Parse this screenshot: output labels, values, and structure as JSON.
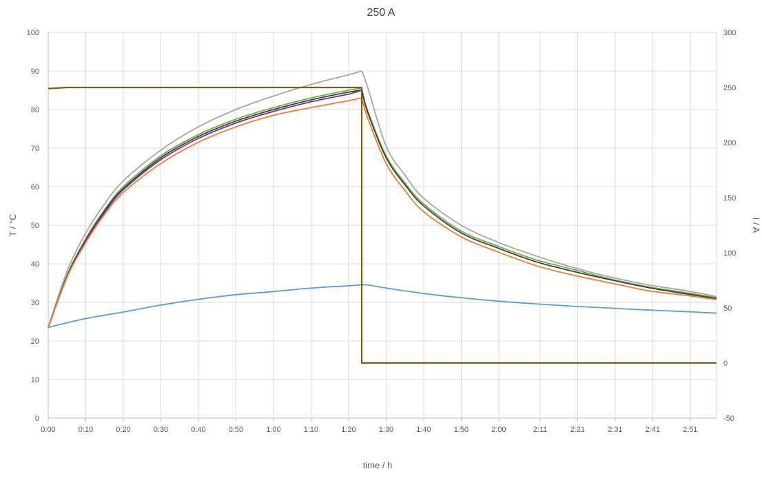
{
  "chart_data": {
    "type": "line",
    "title": "250 A",
    "xlabel": "time / h",
    "ylabel_left": "T / °C",
    "ylabel_right": "I / A",
    "x_unit": "minutes",
    "xlim": [
      0,
      178
    ],
    "ylim_left": [
      0,
      100
    ],
    "ylim_right": [
      -50,
      300
    ],
    "y_ticks_left": [
      0,
      10,
      20,
      30,
      40,
      50,
      60,
      70,
      80,
      90,
      100
    ],
    "y_ticks_right": [
      -50,
      0,
      50,
      100,
      150,
      200,
      250,
      300
    ],
    "x_tick_values": [
      0,
      10,
      20,
      30,
      40,
      50,
      60,
      70,
      80,
      90,
      100,
      110,
      120,
      131,
      141,
      151,
      161,
      171
    ],
    "x_tick_labels": [
      "0:00",
      "0:10",
      "0:20",
      "0:30",
      "0:40",
      "0:50",
      "1:00",
      "1:10",
      "1:20",
      "1:30",
      "1:40",
      "1:50",
      "2:00",
      "2:11",
      "2:21",
      "2:31",
      "2:41",
      "2:51"
    ],
    "grid": true,
    "legend": "none",
    "series": [
      {
        "axis": "left",
        "color": "#a5a5a5",
        "x": [
          0,
          5,
          10,
          15,
          20,
          30,
          40,
          50,
          60,
          70,
          80,
          83.5,
          85,
          90,
          95,
          100,
          110,
          120,
          130,
          140,
          150,
          160,
          170,
          178
        ],
        "y": [
          23.5,
          38,
          48,
          55.5,
          61.5,
          69.5,
          75.5,
          80,
          83.5,
          86.5,
          89,
          90,
          86,
          70.5,
          63,
          57,
          50,
          45.5,
          42,
          39,
          36.5,
          34.5,
          33,
          31.5
        ]
      },
      {
        "axis": "left",
        "color": "#70ad47",
        "x": [
          0,
          5,
          10,
          15,
          20,
          30,
          40,
          50,
          60,
          70,
          80,
          83.5,
          85,
          90,
          95,
          100,
          110,
          120,
          130,
          140,
          150,
          160,
          170,
          178
        ],
        "y": [
          23.5,
          37,
          46.5,
          54,
          60,
          68,
          73.5,
          77.5,
          80.5,
          83,
          85,
          85.5,
          80,
          68,
          61,
          55.5,
          48.5,
          44.5,
          41,
          38.5,
          36,
          34,
          32.5,
          31.2
        ]
      },
      {
        "axis": "left",
        "color": "#404040",
        "x": [
          0,
          5,
          10,
          15,
          20,
          30,
          40,
          50,
          60,
          70,
          80,
          83.5,
          85,
          90,
          95,
          100,
          110,
          120,
          130,
          140,
          150,
          160,
          170,
          178
        ],
        "y": [
          23.5,
          36.8,
          46.2,
          53.7,
          59.5,
          67.5,
          73,
          77,
          80,
          82.5,
          84.5,
          85,
          79.5,
          67.5,
          60.5,
          55,
          48,
          44,
          40.5,
          38,
          35.8,
          33.8,
          32.2,
          31
        ]
      },
      {
        "axis": "left",
        "color": "#7030a0",
        "x": [
          0,
          5,
          10,
          15,
          20,
          30,
          40,
          50,
          60,
          70,
          80,
          83.5
        ],
        "y": [
          23.5,
          36.5,
          46,
          53.3,
          59.2,
          67,
          72.5,
          76.5,
          79.5,
          82,
          84,
          85
        ]
      },
      {
        "axis": "left",
        "color": "#ed7d31",
        "x": [
          0,
          5,
          10,
          15,
          20,
          30,
          40,
          50,
          60,
          70,
          80,
          83.5,
          85,
          90,
          95,
          100,
          110,
          120,
          130,
          140,
          150,
          160,
          170,
          178
        ],
        "y": [
          23.5,
          36.5,
          45.5,
          52.8,
          58.5,
          66,
          71.5,
          75.5,
          78.5,
          80.5,
          82.3,
          83,
          78,
          66,
          59,
          53.5,
          47,
          43,
          39.5,
          37,
          35,
          33,
          31.8,
          30.7
        ]
      },
      {
        "axis": "left",
        "color": "#5b9bd5",
        "x": [
          0,
          2,
          10,
          20,
          30,
          40,
          50,
          60,
          70,
          80,
          84,
          86,
          90,
          100,
          110,
          120,
          130,
          140,
          150,
          160,
          170,
          178
        ],
        "y": [
          23.5,
          24,
          25.8,
          27.5,
          29.3,
          30.8,
          32,
          32.8,
          33.7,
          34.3,
          34.6,
          34.4,
          33.7,
          32.3,
          31.2,
          30.3,
          29.6,
          29,
          28.5,
          28,
          27.6,
          27.2
        ]
      },
      {
        "axis": "right",
        "color": "#7f6000",
        "x": [
          0,
          5,
          83.5,
          83.5,
          178
        ],
        "y": [
          249,
          250,
          250,
          0,
          0
        ]
      }
    ]
  }
}
